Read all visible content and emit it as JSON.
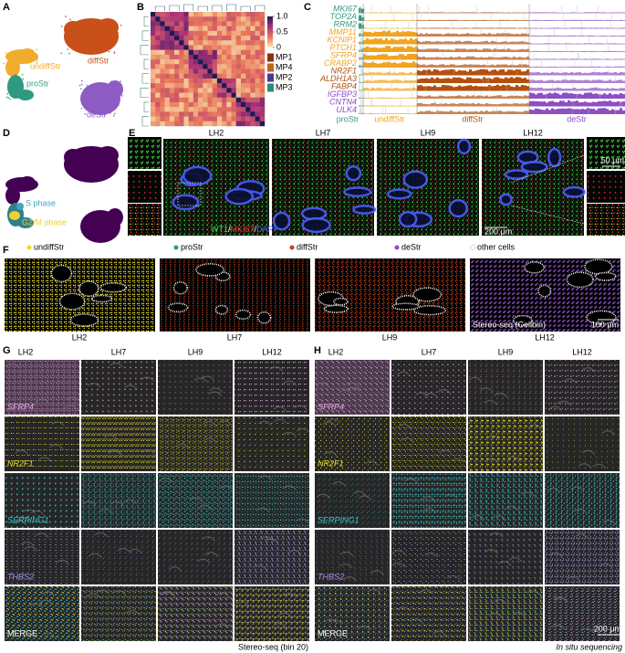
{
  "figure": {
    "panel_labels": [
      "A",
      "B",
      "C",
      "D",
      "E",
      "F",
      "G",
      "H"
    ],
    "a": {
      "clusters": [
        {
          "label": "undiffStr",
          "color": "#f0ad2c"
        },
        {
          "label": "diffStr",
          "color": "#c9501a"
        },
        {
          "label": "proStr",
          "color": "#2f9a80"
        },
        {
          "label": "deStr",
          "color": "#8c5cc4"
        }
      ]
    },
    "b": {
      "colorbar_ticks": [
        {
          "value": 1,
          "label": "1.0"
        },
        0.5,
        0
      ],
      "modules": [
        {
          "label": "MP1",
          "color": "#8a3210"
        },
        {
          "label": "MP4",
          "color": "#c0661e"
        },
        {
          "label": "MP2",
          "color": "#4b3a8c"
        },
        {
          "label": "MP3",
          "color": "#2e8b74"
        }
      ]
    },
    "c": {
      "groups": [
        {
          "label": "proStr",
          "color": "#2f9a80",
          "genes": [
            "MKI67",
            "TOP2A",
            "RRM2"
          ]
        },
        {
          "label": "undiffStr",
          "color": "#f0a41e",
          "genes": [
            "MMP11",
            "KCNIP1",
            "PTCH1",
            "SFRP4",
            "CRABP2"
          ]
        },
        {
          "label": "diffStr",
          "color": "#b4500f",
          "genes": [
            "NR2F1",
            "ALDH1A3",
            "FABP4"
          ]
        },
        {
          "label": "deStr",
          "color": "#8c4fc4",
          "genes": [
            "IGFBP3",
            "CNTN4",
            "ULK4"
          ]
        }
      ]
    },
    "d": {
      "phases": [
        {
          "label": "S phase",
          "color": "#3fa5bf"
        },
        {
          "label": "G2/M phase",
          "color": "#f2d22a"
        }
      ]
    },
    "e": {
      "samples": [
        "LH2",
        "LH7",
        "LH9",
        "LH12"
      ],
      "stain": [
        {
          "label": "WT1",
          "color": "#3ee03e"
        },
        {
          "label": "/",
          "color": "#ffffff"
        },
        {
          "label": "MKI67",
          "color": "#ff3030"
        },
        {
          "label": "/",
          "color": "#ffffff"
        },
        {
          "label": "DAPI",
          "color": "#4a5cff"
        }
      ],
      "scale_bars": [
        "50 μm",
        "200 μm"
      ]
    },
    "f": {
      "legend": [
        {
          "label": "undiffStr",
          "color": "#e6dc2c"
        },
        {
          "label": "proStr",
          "color": "#2f9a80"
        },
        {
          "label": "diffStr",
          "color": "#c8401c"
        },
        {
          "label": "deStr",
          "color": "#8c4fc4"
        },
        {
          "label": "other cells",
          "color": "#ffffff"
        }
      ],
      "samples": [
        "LH2",
        "LH7",
        "LH9",
        "LH12"
      ],
      "platform": "Stereo-seq (Cellbin)",
      "scale_bar": "100 μm"
    },
    "g": {
      "samples": [
        "LH2",
        "LH7",
        "LH9",
        "LH12"
      ],
      "genes": [
        {
          "label": "SFRP4",
          "color": "#e8a6e8"
        },
        {
          "label": "NR2F1",
          "color": "#e6e020"
        },
        {
          "label": "SERPING1",
          "color": "#34c8cc"
        },
        {
          "label": "THBS2",
          "color": "#a894e8"
        },
        {
          "label": "MERGE",
          "color": "#ffffff"
        }
      ],
      "caption": "Stereo-seq (bin 20)"
    },
    "h": {
      "samples": [
        "LH2",
        "LH7",
        "LH9",
        "LH12"
      ],
      "genes": [
        {
          "label": "SFRP4",
          "color": "#e8a6e8"
        },
        {
          "label": "NR2F1",
          "color": "#e6e020"
        },
        {
          "label": "SERPING1",
          "color": "#34c8cc"
        },
        {
          "label": "THBS2",
          "color": "#a894e8"
        },
        {
          "label": "MERGE",
          "color": "#ffffff"
        }
      ],
      "caption": "In situ sequencing",
      "scale_bar": "200 μm"
    }
  }
}
